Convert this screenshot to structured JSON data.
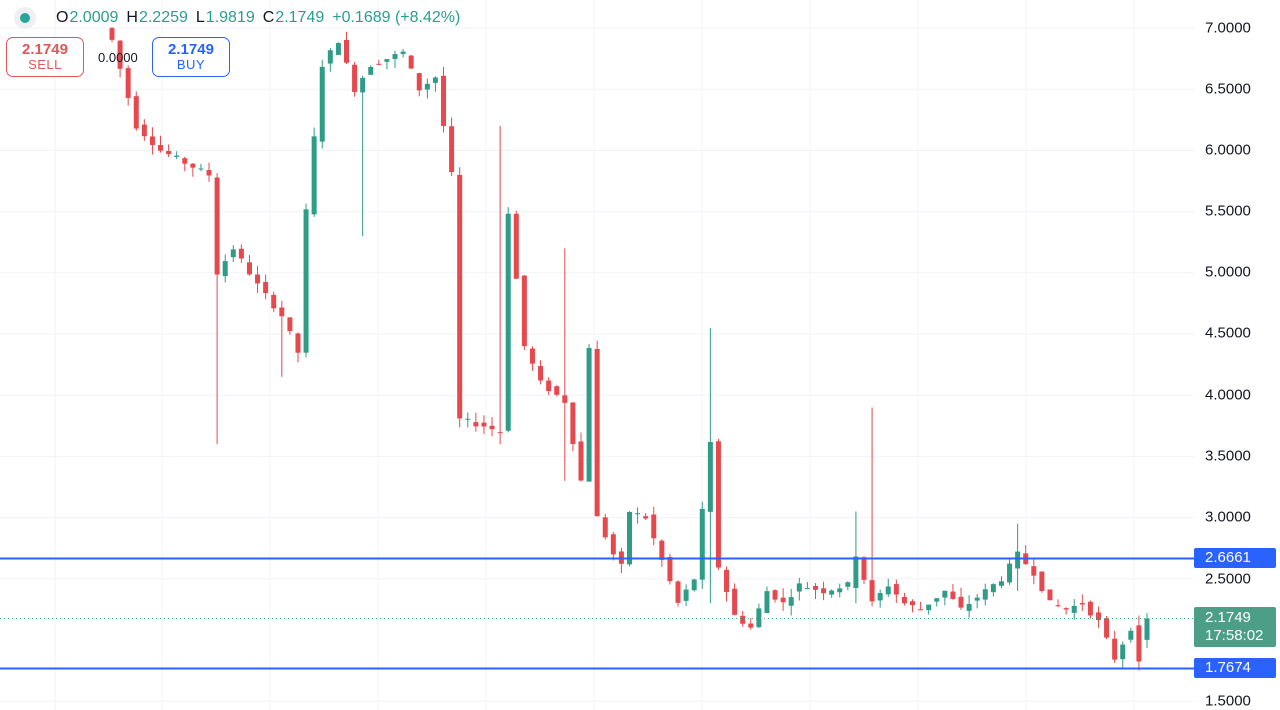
{
  "ohlc": {
    "open_key": "O",
    "open": "2.0009",
    "high_key": "H",
    "high": "2.2259",
    "low_key": "L",
    "low": "1.9819",
    "close_key": "C",
    "close": "2.1749",
    "change": "+0.1689 (+8.42%)"
  },
  "trade": {
    "sell_price": "2.1749",
    "sell_label": "SELL",
    "spread": "0.0000",
    "buy_price": "2.1749",
    "buy_label": "BUY"
  },
  "price_axis": {
    "labels": [
      "7.0000",
      "6.5000",
      "6.0000",
      "5.5000",
      "5.0000",
      "4.5000",
      "4.0000",
      "3.5000",
      "3.0000",
      "2.5000",
      "1.5000"
    ]
  },
  "horizontal_lines": {
    "upper": "2.6661",
    "lower": "1.7674"
  },
  "last_price": {
    "value": "2.1749",
    "countdown": "17:58:02"
  },
  "colors": {
    "up": "#2e9c86",
    "down": "#e5484d",
    "hline": "#2962ff",
    "last_tag": "#4c9e87",
    "grid": "#f0f3fa"
  },
  "chart_data": {
    "type": "candlestick",
    "ylim": [
      1.45,
      7.2
    ],
    "y_ticks": [
      1.5,
      2.5,
      3.0,
      3.5,
      4.0,
      4.5,
      5.0,
      5.5,
      6.0,
      6.5,
      7.0
    ],
    "horizontal_levels": [
      2.6661,
      1.7674
    ],
    "last_close": 2.1749,
    "path": [
      [
        0,
        6.9
      ],
      [
        3,
        6.2
      ],
      [
        6,
        6.0
      ],
      [
        9,
        5.9
      ],
      [
        12,
        5.8
      ],
      [
        13,
        5.0
      ],
      [
        15,
        5.2
      ],
      [
        18,
        4.9
      ],
      [
        21,
        4.65
      ],
      [
        23,
        4.35
      ],
      [
        24,
        5.5
      ],
      [
        26,
        6.7
      ],
      [
        28,
        6.9
      ],
      [
        30,
        6.5
      ],
      [
        32,
        6.7
      ],
      [
        36,
        6.8
      ],
      [
        38,
        6.5
      ],
      [
        40,
        6.6
      ],
      [
        42,
        5.8
      ],
      [
        43,
        3.8
      ],
      [
        46,
        3.75
      ],
      [
        48,
        3.7
      ],
      [
        49,
        5.5
      ],
      [
        51,
        4.4
      ],
      [
        53,
        4.1
      ],
      [
        56,
        3.95
      ],
      [
        58,
        3.3
      ],
      [
        59,
        4.4
      ],
      [
        60,
        3.0
      ],
      [
        62,
        2.7
      ],
      [
        63,
        2.6
      ],
      [
        64,
        3.05
      ],
      [
        66,
        3.0
      ],
      [
        68,
        2.65
      ],
      [
        70,
        2.3
      ],
      [
        72,
        2.5
      ],
      [
        74,
        3.6
      ],
      [
        75,
        2.6
      ],
      [
        77,
        2.2
      ],
      [
        79,
        2.1
      ],
      [
        81,
        2.4
      ],
      [
        83,
        2.3
      ],
      [
        85,
        2.45
      ],
      [
        88,
        2.4
      ],
      [
        91,
        2.45
      ],
      [
        92,
        2.7
      ],
      [
        94,
        2.3
      ],
      [
        96,
        2.45
      ],
      [
        98,
        2.3
      ],
      [
        100,
        2.25
      ],
      [
        103,
        2.4
      ],
      [
        105,
        2.25
      ],
      [
        107,
        2.35
      ],
      [
        110,
        2.5
      ],
      [
        112,
        2.7
      ],
      [
        114,
        2.55
      ],
      [
        116,
        2.3
      ],
      [
        118,
        2.25
      ],
      [
        120,
        2.3
      ],
      [
        122,
        2.15
      ],
      [
        124,
        1.85
      ],
      [
        126,
        2.1
      ],
      [
        127,
        1.8
      ],
      [
        128,
        2.17
      ]
    ],
    "highlights": [
      {
        "index": 13,
        "high": 3.6,
        "low": 3.6
      },
      {
        "index": 21,
        "high": 4.2,
        "low": 4.15
      },
      {
        "index": 31,
        "high": 6.6,
        "low": 5.3
      },
      {
        "index": 48,
        "high": 6.2,
        "low": 3.6
      },
      {
        "index": 56,
        "high": 5.2,
        "low": 3.3
      },
      {
        "index": 74,
        "high": 4.55,
        "low": 2.3
      },
      {
        "index": 92,
        "high": 3.05,
        "low": 2.3
      },
      {
        "index": 94,
        "high": 3.9,
        "low": 2.3
      },
      {
        "index": 112,
        "high": 2.95,
        "low": 2.4
      },
      {
        "index": 127,
        "high": 2.2,
        "low": 1.75
      }
    ]
  }
}
